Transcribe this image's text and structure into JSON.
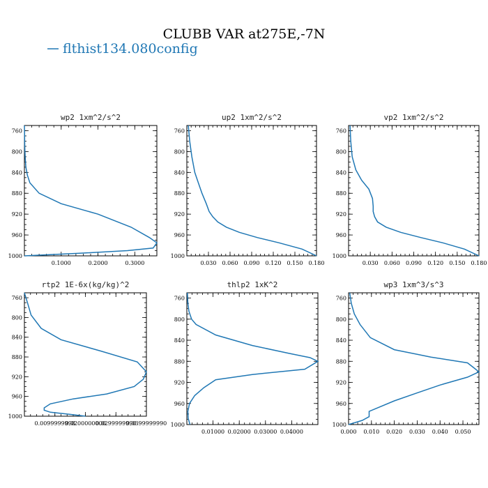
{
  "title": "CLUBB VAR at275E,-7N",
  "legend": {
    "label": "flthist134.080config",
    "color": "#1f77b4"
  },
  "chart_data": [
    {
      "type": "line",
      "title": "wp2   1xm^2/s^2",
      "xlabel": "",
      "ylabel": "",
      "xlim": [
        0.0,
        0.36
      ],
      "ylim": [
        1000,
        750
      ],
      "x_ticks": [
        0.1,
        0.2,
        0.3
      ],
      "x_tick_labels": [
        "0.1000",
        "0.2000",
        "0.3000"
      ],
      "y_ticks": [
        760,
        800,
        840,
        880,
        920,
        960,
        1000
      ],
      "series": [
        {
          "name": "flthist134.080config",
          "x": [
            0.0,
            0.0005,
            0.001,
            0.002,
            0.004,
            0.008,
            0.015,
            0.04,
            0.1,
            0.2,
            0.29,
            0.34,
            0.36,
            0.35,
            0.28,
            0.15,
            0.0
          ],
          "y": [
            750,
            770,
            790,
            810,
            830,
            845,
            860,
            880,
            900,
            920,
            945,
            965,
            975,
            985,
            990,
            995,
            1000
          ]
        }
      ]
    },
    {
      "type": "line",
      "title": "up2   1xm^2/s^2",
      "xlabel": "",
      "ylabel": "",
      "xlim": [
        0.0,
        0.18
      ],
      "ylim": [
        1000,
        750
      ],
      "x_ticks": [
        0.03,
        0.06,
        0.09,
        0.12,
        0.15,
        0.18
      ],
      "x_tick_labels": [
        "0.030",
        "0.060",
        "0.090",
        "0.120",
        "0.150",
        "0.180"
      ],
      "y_ticks": [
        760,
        800,
        840,
        880,
        920,
        960,
        1000
      ],
      "series": [
        {
          "name": "flthist134.080config",
          "x": [
            0.002,
            0.004,
            0.007,
            0.011,
            0.016,
            0.021,
            0.027,
            0.031,
            0.036,
            0.043,
            0.055,
            0.073,
            0.098,
            0.128,
            0.16,
            0.18
          ],
          "y": [
            750,
            780,
            810,
            840,
            860,
            880,
            900,
            915,
            925,
            935,
            945,
            955,
            965,
            975,
            987,
            1000
          ]
        }
      ]
    },
    {
      "type": "line",
      "title": "vp2   1xm^2/s^2",
      "xlabel": "",
      "ylabel": "",
      "xlim": [
        0.0,
        0.18
      ],
      "ylim": [
        1000,
        750
      ],
      "x_ticks": [
        0.03,
        0.06,
        0.09,
        0.12,
        0.15,
        0.18
      ],
      "x_tick_labels": [
        "0.030",
        "0.060",
        "0.090",
        "0.120",
        "0.150",
        "0.180"
      ],
      "y_ticks": [
        760,
        800,
        840,
        880,
        920,
        960,
        1000
      ],
      "series": [
        {
          "name": "flthist134.080config",
          "x": [
            0.002,
            0.003,
            0.005,
            0.01,
            0.018,
            0.028,
            0.033,
            0.034,
            0.034,
            0.036,
            0.04,
            0.052,
            0.072,
            0.1,
            0.13,
            0.16,
            0.18
          ],
          "y": [
            750,
            780,
            810,
            835,
            855,
            872,
            890,
            905,
            915,
            925,
            935,
            945,
            955,
            965,
            975,
            987,
            1000
          ]
        }
      ]
    },
    {
      "type": "line",
      "title": "rtp2   1E-6x(kg/kg)^2",
      "xlabel": "",
      "ylabel": "",
      "xlim": [
        0.0,
        0.04
      ],
      "ylim": [
        1000,
        750
      ],
      "x_ticks": [
        0.01,
        0.02,
        0.03,
        0.04
      ],
      "x_tick_labels": [
        "0.0099999998",
        "0.0200000000",
        "0.0299999990",
        "0.0399999990"
      ],
      "y_ticks": [
        760,
        800,
        840,
        880,
        920,
        960,
        1000
      ],
      "series": [
        {
          "name": "flthist134.080config",
          "x": [
            0.0,
            0.001,
            0.0022,
            0.0055,
            0.012,
            0.025,
            0.037,
            0.04,
            0.039,
            0.036,
            0.027,
            0.016,
            0.0085,
            0.0065,
            0.0065,
            0.0085,
            0.016,
            0.02
          ],
          "y": [
            750,
            770,
            795,
            822,
            845,
            868,
            890,
            910,
            925,
            940,
            955,
            965,
            975,
            983,
            988,
            992,
            997,
            1000
          ]
        }
      ]
    },
    {
      "type": "line",
      "title": "thlp2   1xK^2",
      "xlabel": "",
      "ylabel": "",
      "xlim": [
        0.0,
        0.05
      ],
      "ylim": [
        1000,
        750
      ],
      "x_ticks": [
        0.01,
        0.02,
        0.03,
        0.04
      ],
      "x_tick_labels": [
        "0.01000",
        "0.02000",
        "0.03000",
        "0.04000"
      ],
      "y_ticks": [
        760,
        800,
        840,
        880,
        920,
        960,
        1000
      ],
      "series": [
        {
          "name": "flthist134.080config",
          "x": [
            0.0002,
            0.0004,
            0.0008,
            0.0018,
            0.0035,
            0.011,
            0.025,
            0.039,
            0.047,
            0.05,
            0.045,
            0.025,
            0.011,
            0.0065,
            0.003,
            0.001,
            0.0004,
            0.0005,
            0.0012
          ],
          "y": [
            750,
            770,
            785,
            800,
            810,
            830,
            850,
            865,
            873,
            880,
            895,
            905,
            915,
            930,
            945,
            960,
            975,
            988,
            1000
          ]
        }
      ]
    },
    {
      "type": "line",
      "title": "wp3   1xm^3/s^3",
      "xlabel": "",
      "ylabel": "",
      "xlim": [
        0.0,
        0.057
      ],
      "ylim": [
        1000,
        750
      ],
      "x_ticks": [
        0.0,
        0.01,
        0.02,
        0.03,
        0.04,
        0.05
      ],
      "x_tick_labels": [
        "0.000",
        "0.010",
        "0.020",
        "0.030",
        "0.040",
        "0.050"
      ],
      "y_ticks": [
        760,
        800,
        840,
        880,
        920,
        960,
        1000
      ],
      "series": [
        {
          "name": "flthist134.080config",
          "x": [
            0.0005,
            0.0012,
            0.0025,
            0.005,
            0.0095,
            0.02,
            0.036,
            0.052,
            0.055,
            0.057,
            0.052,
            0.04,
            0.03,
            0.02,
            0.009,
            0.009,
            0.006,
            0.0
          ],
          "y": [
            750,
            770,
            790,
            810,
            835,
            858,
            872,
            883,
            893,
            900,
            910,
            925,
            940,
            955,
            975,
            985,
            992,
            1000
          ]
        }
      ]
    }
  ]
}
